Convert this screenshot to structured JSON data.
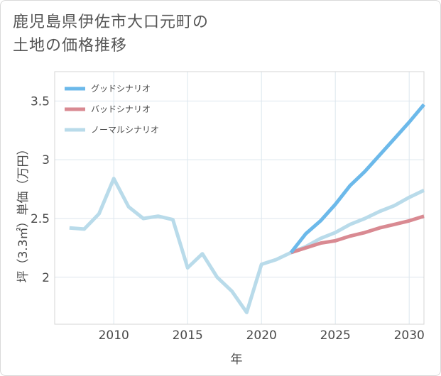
{
  "title_line1": "鹿児島県伊佐市大口元町の",
  "title_line2": "土地の価格推移",
  "chart_data": {
    "type": "line",
    "xlabel": "年",
    "ylabel": "坪（3.3㎡）単価（万円）",
    "xlim": [
      2006,
      2031
    ],
    "ylim": [
      1.6,
      3.75
    ],
    "xticks": [
      2010,
      2015,
      2020,
      2025,
      2030
    ],
    "yticks": [
      2,
      2.5,
      3,
      3.5
    ],
    "ytick_labels": [
      "2",
      "2.5",
      "3",
      "3.5"
    ],
    "legend_position": "top-left",
    "series": [
      {
        "name": "グッドシナリオ",
        "color": "#6cb9ea",
        "x": [
          2022,
          2023,
          2024,
          2025,
          2026,
          2027,
          2028,
          2029,
          2030,
          2031
        ],
        "y": [
          2.21,
          2.37,
          2.48,
          2.62,
          2.78,
          2.9,
          3.04,
          3.18,
          3.32,
          3.47
        ]
      },
      {
        "name": "バッドシナリオ",
        "color": "#d98a92",
        "x": [
          2022,
          2023,
          2024,
          2025,
          2026,
          2027,
          2028,
          2029,
          2030,
          2031
        ],
        "y": [
          2.21,
          2.25,
          2.29,
          2.31,
          2.35,
          2.38,
          2.42,
          2.45,
          2.48,
          2.52
        ]
      },
      {
        "name": "ノーマルシナリオ",
        "color": "#b9dbea",
        "x": [
          2007,
          2008,
          2009,
          2010,
          2011,
          2012,
          2013,
          2014,
          2015,
          2016,
          2017,
          2018,
          2019,
          2020,
          2021,
          2022,
          2023,
          2024,
          2025,
          2026,
          2027,
          2028,
          2029,
          2030,
          2031
        ],
        "y": [
          2.42,
          2.41,
          2.54,
          2.84,
          2.6,
          2.5,
          2.52,
          2.49,
          2.08,
          2.2,
          2.0,
          1.88,
          1.7,
          2.11,
          2.15,
          2.21,
          2.26,
          2.33,
          2.38,
          2.45,
          2.5,
          2.56,
          2.61,
          2.68,
          2.74
        ]
      }
    ]
  }
}
